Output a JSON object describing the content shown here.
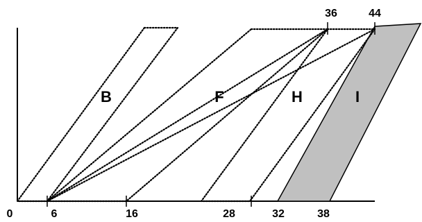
{
  "bottom_labels": [
    "0",
    "6",
    "16",
    "28",
    "32",
    "38"
  ],
  "top_labels": [
    "36",
    "44"
  ],
  "regions": {
    "b": "B",
    "f": "F",
    "h": "H",
    "i": "I"
  },
  "colors": {
    "line": "#000000",
    "shaded_fill": "#c0c0c0",
    "background": "#ffffff"
  }
}
